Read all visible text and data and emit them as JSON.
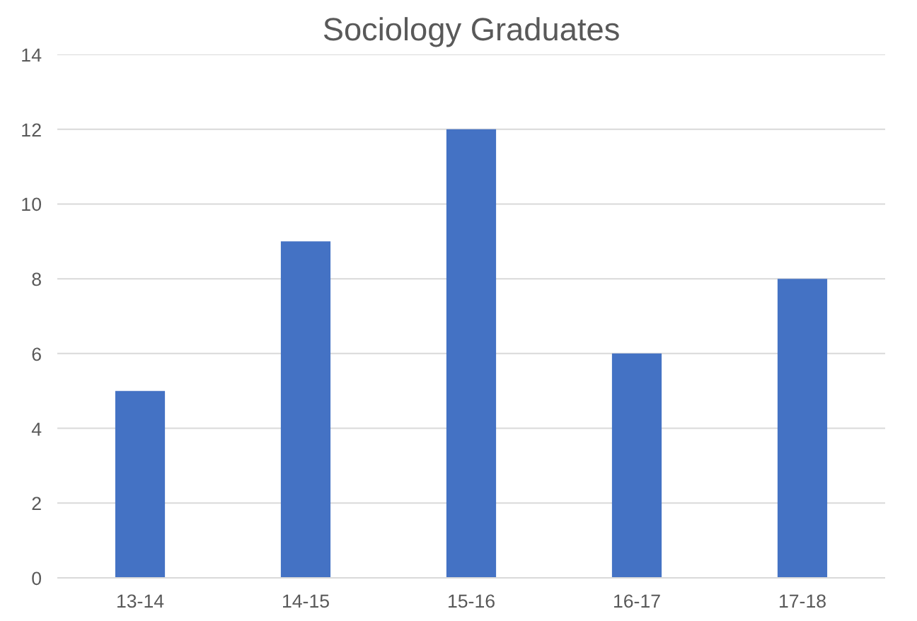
{
  "chart_data": {
    "type": "bar",
    "title": "Sociology Graduates",
    "categories": [
      "13-14",
      "14-15",
      "15-16",
      "16-17",
      "17-18"
    ],
    "values": [
      5,
      9,
      12,
      6,
      8
    ],
    "color": "#4472c4",
    "ylim": [
      0,
      14
    ],
    "yticks": [
      0,
      2,
      4,
      6,
      8,
      10,
      12,
      14
    ],
    "grid": "y"
  }
}
